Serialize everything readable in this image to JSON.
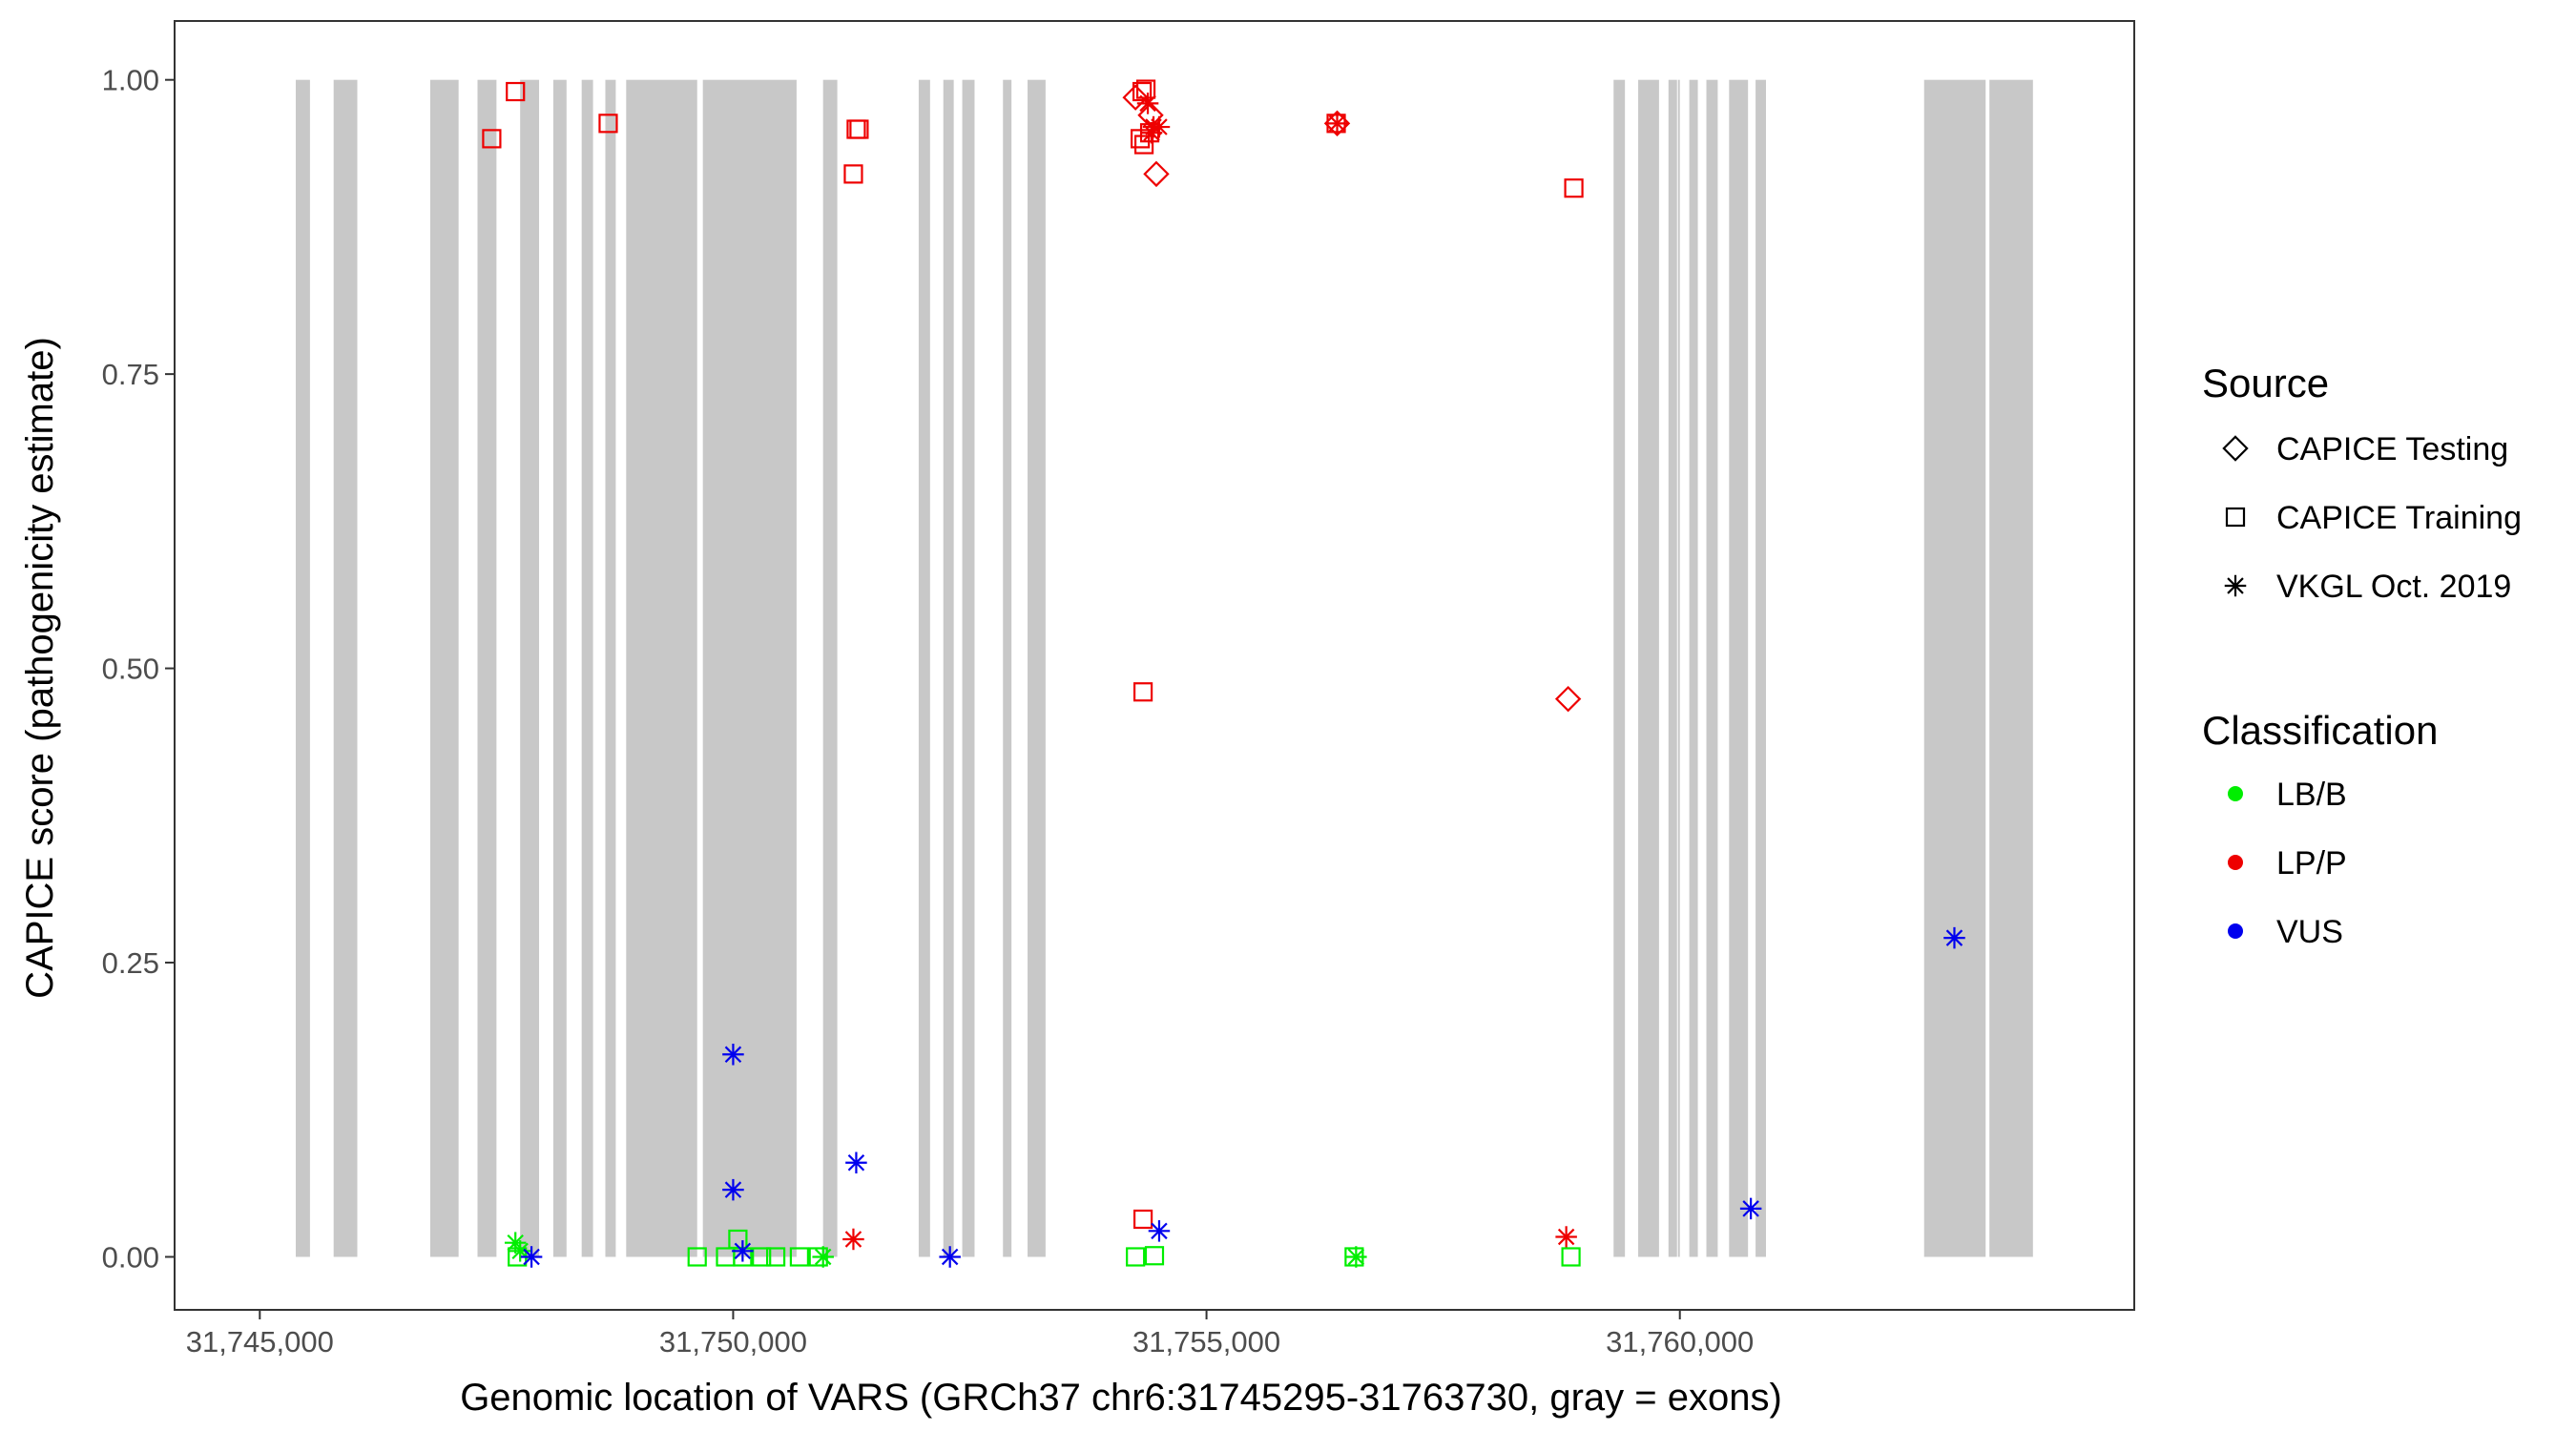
{
  "chart_data": {
    "type": "scatter",
    "xlabel": "Genomic location of VARS (GRCh37 chr6:31745295-31763730, gray = exons)",
    "ylabel": "CAPICE score (pathogenicity estimate)",
    "xlim": [
      31744100,
      31764800
    ],
    "ylim": [
      -0.045,
      1.05
    ],
    "x_ticks": [
      31745000,
      31750000,
      31755000,
      31760000
    ],
    "x_tick_labels": [
      "31,745,000",
      "31,750,000",
      "31,755,000",
      "31,760,000"
    ],
    "y_ticks": [
      0,
      0.25,
      0.5,
      0.75,
      1.0
    ],
    "y_tick_labels": [
      "0.00",
      "0.25",
      "0.50",
      "0.75",
      "1.00"
    ],
    "grid": false,
    "legend_position": "right",
    "exons": [
      [
        31745380,
        31745530
      ],
      [
        31745780,
        31746030
      ],
      [
        31746800,
        31747100
      ],
      [
        31747300,
        31747500
      ],
      [
        31747750,
        31747950
      ],
      [
        31748100,
        31748240
      ],
      [
        31748400,
        31748520
      ],
      [
        31748650,
        31748760
      ],
      [
        31748870,
        31749620
      ],
      [
        31749680,
        31750670
      ],
      [
        31750950,
        31751100
      ],
      [
        31751960,
        31752080
      ],
      [
        31752220,
        31752330
      ],
      [
        31752420,
        31752550
      ],
      [
        31752850,
        31752940
      ],
      [
        31753110,
        31753300
      ],
      [
        31760000,
        31759980
      ],
      [
        31759300,
        31759420
      ],
      [
        31759560,
        31759780
      ],
      [
        31759880,
        31759970
      ],
      [
        31760100,
        31760190
      ],
      [
        31760280,
        31760400
      ],
      [
        31760520,
        31760720
      ],
      [
        31760800,
        31760910
      ],
      [
        31762580,
        31763230
      ],
      [
        31763270,
        31763730
      ]
    ],
    "legend": {
      "source": {
        "title": "Source",
        "entries": [
          {
            "label": "CAPICE Testing",
            "shape": "diamond"
          },
          {
            "label": "CAPICE Training",
            "shape": "square"
          },
          {
            "label": "VKGL Oct. 2019",
            "shape": "asterisk"
          }
        ]
      },
      "classification": {
        "title": "Classification",
        "entries": [
          {
            "label": "LB/B",
            "color": "#00ee00"
          },
          {
            "label": "LP/P",
            "color": "#ee0000"
          },
          {
            "label": "VUS",
            "color": "#0000ee"
          }
        ]
      }
    },
    "colors": {
      "LB/B": "#00ee00",
      "LP/P": "#ee0000",
      "VUS": "#0000ee"
    },
    "series": [
      {
        "source": "CAPICE Training",
        "classification": "LP/P",
        "points": [
          [
            31747450,
            0.95
          ],
          [
            31747700,
            0.99
          ],
          [
            31748680,
            0.963
          ],
          [
            31751300,
            0.958
          ],
          [
            31751330,
            0.958
          ],
          [
            31751270,
            0.92
          ],
          [
            31754320,
            0.99
          ],
          [
            31754360,
            0.992
          ],
          [
            31754300,
            0.95
          ],
          [
            31754340,
            0.945
          ],
          [
            31754400,
            0.955
          ],
          [
            31754330,
            0.48
          ],
          [
            31754330,
            0.032
          ],
          [
            31756370,
            0.963
          ],
          [
            31758880,
            0.908
          ]
        ]
      },
      {
        "source": "CAPICE Testing",
        "classification": "LP/P",
        "points": [
          [
            31754250,
            0.985
          ],
          [
            31754410,
            0.97
          ],
          [
            31754470,
            0.92
          ],
          [
            31756380,
            0.963
          ],
          [
            31758820,
            0.474
          ]
        ]
      },
      {
        "source": "VKGL Oct. 2019",
        "classification": "LP/P",
        "points": [
          [
            31754380,
            0.98
          ],
          [
            31754440,
            0.96
          ],
          [
            31754500,
            0.96
          ],
          [
            31754420,
            0.955
          ],
          [
            31756380,
            0.963
          ],
          [
            31751270,
            0.015
          ],
          [
            31758800,
            0.017
          ]
        ]
      },
      {
        "source": "CAPICE Training",
        "classification": "LB/B",
        "points": [
          [
            31747720,
            0.0
          ],
          [
            31749620,
            0.0
          ],
          [
            31749920,
            0.0
          ],
          [
            31750050,
            0.015
          ],
          [
            31750100,
            0.0
          ],
          [
            31750300,
            0.0
          ],
          [
            31750450,
            0.0
          ],
          [
            31750700,
            0.0
          ],
          [
            31750900,
            0.0
          ],
          [
            31754250,
            0.0
          ],
          [
            31754450,
            0.001
          ],
          [
            31756560,
            0.0
          ],
          [
            31758850,
            0.0
          ]
        ]
      },
      {
        "source": "VKGL Oct. 2019",
        "classification": "LB/B",
        "points": [
          [
            31747700,
            0.012
          ],
          [
            31747750,
            0.005
          ],
          [
            31750950,
            0.0
          ],
          [
            31756580,
            0.0
          ]
        ]
      },
      {
        "source": "VKGL Oct. 2019",
        "classification": "VUS",
        "points": [
          [
            31747870,
            0.0
          ],
          [
            31750000,
            0.172
          ],
          [
            31750000,
            0.057
          ],
          [
            31750100,
            0.005
          ],
          [
            31751300,
            0.08
          ],
          [
            31752290,
            0.0
          ],
          [
            31754500,
            0.022
          ],
          [
            31760750,
            0.041
          ],
          [
            31762900,
            0.271
          ]
        ]
      }
    ]
  }
}
